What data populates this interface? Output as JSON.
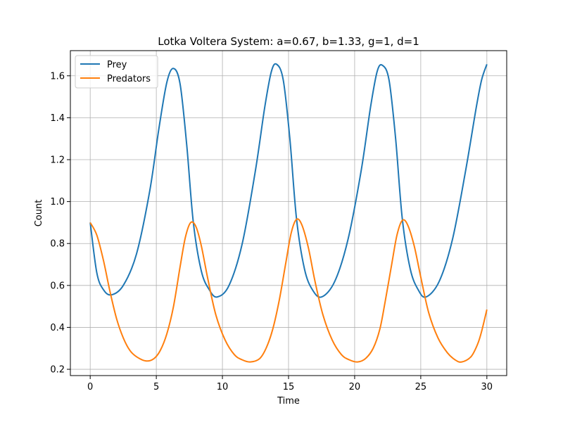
{
  "chart_data": {
    "type": "line",
    "title": "Lotka Voltera System: a=0.67, b=1.33, g=1, d=1",
    "xlabel": "Time",
    "ylabel": "Count",
    "xlim": [
      -1.5,
      31.5
    ],
    "ylim": [
      0.17,
      1.72
    ],
    "xticks": [
      0,
      5,
      10,
      15,
      20,
      25,
      30
    ],
    "yticks": [
      0.2,
      0.4,
      0.6,
      0.8,
      1.0,
      1.2,
      1.4,
      1.6
    ],
    "xtick_labels": [
      "0",
      "5",
      "10",
      "15",
      "20",
      "25",
      "30"
    ],
    "ytick_labels": [
      "0.2",
      "0.4",
      "0.6",
      "0.8",
      "1.0",
      "1.2",
      "1.4",
      "1.6"
    ],
    "grid": true,
    "legend_position": "top-left",
    "series": [
      {
        "name": "Prey",
        "color": "#1f77b4",
        "x": [
          0,
          0.5,
          1,
          1.6,
          2.5,
          3.5,
          4.5,
          5.2,
          5.8,
          6.3,
          6.8,
          7.3,
          7.8,
          8.4,
          9.0,
          9.6,
          10.5,
          11.5,
          12.5,
          13.2,
          13.7,
          14.1,
          14.6,
          15.1,
          15.6,
          16.2,
          16.8,
          17.5,
          18.5,
          19.5,
          20.5,
          21.2,
          21.7,
          22.1,
          22.6,
          23.1,
          23.6,
          24.2,
          24.8,
          25.4,
          26.4,
          27.4,
          28.4,
          29.2,
          29.6,
          30.0
        ],
        "y": [
          0.9,
          0.66,
          0.58,
          0.555,
          0.6,
          0.75,
          1.05,
          1.35,
          1.57,
          1.635,
          1.56,
          1.27,
          0.9,
          0.67,
          0.58,
          0.545,
          0.6,
          0.8,
          1.15,
          1.45,
          1.62,
          1.655,
          1.58,
          1.3,
          0.92,
          0.68,
          0.58,
          0.545,
          0.62,
          0.82,
          1.15,
          1.45,
          1.62,
          1.65,
          1.58,
          1.3,
          0.92,
          0.68,
          0.58,
          0.545,
          0.62,
          0.82,
          1.15,
          1.45,
          1.58,
          1.655
        ]
      },
      {
        "name": "Predators",
        "color": "#ff7f0e",
        "x": [
          0,
          0.5,
          1,
          1.5,
          2,
          2.5,
          3,
          3.5,
          4.2,
          4.8,
          5.3,
          5.8,
          6.3,
          6.8,
          7.2,
          7.6,
          8.0,
          8.4,
          8.9,
          9.5,
          10.2,
          10.9,
          11.5,
          12.1,
          12.8,
          13.3,
          13.8,
          14.3,
          14.8,
          15.2,
          15.6,
          16.0,
          16.5,
          17.0,
          17.6,
          18.3,
          19.0,
          19.6,
          20.2,
          20.8,
          21.4,
          21.9,
          22.3,
          22.8,
          23.2,
          23.6,
          24.0,
          24.5,
          25.0,
          25.6,
          26.3,
          27.0,
          27.6,
          28.1,
          28.8,
          29.3,
          29.6,
          30.0
        ],
        "y": [
          0.9,
          0.84,
          0.72,
          0.57,
          0.44,
          0.35,
          0.29,
          0.26,
          0.24,
          0.25,
          0.29,
          0.37,
          0.5,
          0.69,
          0.83,
          0.9,
          0.88,
          0.79,
          0.63,
          0.46,
          0.34,
          0.27,
          0.245,
          0.235,
          0.25,
          0.3,
          0.39,
          0.53,
          0.71,
          0.85,
          0.915,
          0.89,
          0.78,
          0.62,
          0.46,
          0.34,
          0.27,
          0.245,
          0.235,
          0.25,
          0.3,
          0.39,
          0.52,
          0.7,
          0.84,
          0.91,
          0.89,
          0.79,
          0.64,
          0.47,
          0.35,
          0.28,
          0.245,
          0.235,
          0.26,
          0.32,
          0.38,
          0.485
        ]
      }
    ]
  }
}
